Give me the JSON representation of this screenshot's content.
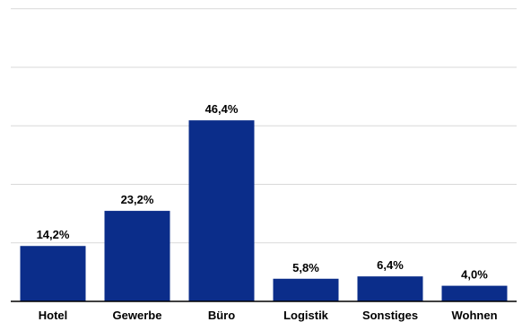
{
  "chart_data": {
    "type": "bar",
    "categories": [
      "Hotel",
      "Gewerbe",
      "Büro",
      "Logistik",
      "Sonstiges",
      "Wohnen"
    ],
    "values": [
      14.2,
      23.2,
      46.4,
      5.8,
      6.4,
      4.0
    ],
    "data_labels": [
      "14,2%",
      "23,2%",
      "46,4%",
      "5,8%",
      "6,4%",
      "4,0%"
    ],
    "title": "",
    "xlabel": "",
    "ylabel": "",
    "ylim": [
      0,
      50
    ],
    "grid": true,
    "legend": "none",
    "bar_color": "#0b2d8a"
  }
}
